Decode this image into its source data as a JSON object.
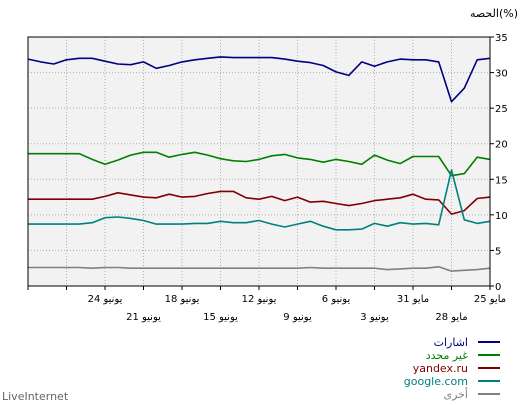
{
  "chart_data": {
    "type": "line",
    "ylabel": "الحصه(%)",
    "ylim": [
      0,
      35
    ],
    "yticks": [
      0,
      5,
      10,
      15,
      20,
      25,
      30,
      35
    ],
    "grid": true,
    "x_direction": "right-to-left (most recent on the left)",
    "x_ticks_top": [
      "25 مايو",
      "31 مايو",
      "6 يونيو",
      "12 يونيو",
      "18 يونيو",
      "24 يونيو"
    ],
    "x_ticks_bottom": [
      "28 مايو",
      "3 يونيو",
      "9 يونيو",
      "15 يونيو",
      "21 يونيو"
    ],
    "n_points": 37,
    "series": [
      {
        "name": "اشارات",
        "color": "#000080",
        "values": [
          32,
          31.8,
          27.8,
          25.9,
          31.5,
          31.8,
          31.8,
          31.9,
          31.5,
          30.9,
          31.5,
          29.6,
          30.1,
          31,
          31.4,
          31.6,
          31.9,
          32.1,
          32.1,
          32.1,
          32.1,
          32.2,
          32,
          31.8,
          31.5,
          31,
          30.6,
          31.5,
          31.1,
          31.2,
          31.6,
          32,
          32,
          31.8,
          31.2,
          31.5,
          31.9
        ]
      },
      {
        "name": "غير محدد",
        "color": "#008000",
        "values": [
          17.8,
          18.1,
          15.8,
          15.5,
          18.2,
          18.2,
          18.2,
          17.2,
          17.7,
          18.4,
          17.1,
          17.5,
          17.8,
          17.4,
          17.8,
          18,
          18.5,
          18.3,
          17.8,
          17.5,
          17.6,
          17.9,
          18.4,
          18.8,
          18.5,
          18.1,
          18.8,
          18.8,
          18.4,
          17.7,
          17.1,
          17.8,
          18.6,
          18.6,
          18.6,
          18.6,
          18.6
        ]
      },
      {
        "name": "yandex.ru",
        "color": "#800000",
        "values": [
          12.5,
          12.3,
          10.6,
          10.1,
          12.1,
          12.2,
          12.9,
          12.4,
          12.2,
          12.0,
          11.6,
          11.3,
          11.6,
          11.9,
          11.8,
          12.5,
          12.0,
          12.6,
          12.2,
          12.4,
          13.3,
          13.3,
          13.0,
          12.6,
          12.5,
          12.9,
          12.4,
          12.5,
          12.8,
          13.1,
          12.6,
          12.2,
          12.2,
          12.2,
          12.2,
          12.2,
          12.2
        ]
      },
      {
        "name": "google.com",
        "color": "#008080",
        "values": [
          9.1,
          8.8,
          9.3,
          16.3,
          8.6,
          8.8,
          8.7,
          8.9,
          8.4,
          8.8,
          8.0,
          7.9,
          7.9,
          8.4,
          9.1,
          8.7,
          8.3,
          8.7,
          9.2,
          8.9,
          8.9,
          9.1,
          8.8,
          8.8,
          8.7,
          8.7,
          8.7,
          9.2,
          9.5,
          9.7,
          9.6,
          8.9,
          8.7,
          8.7,
          8.7,
          8.7,
          8.7
        ]
      },
      {
        "name": "أخرى",
        "color": "#808080",
        "values": [
          2.5,
          2.3,
          2.2,
          2.1,
          2.7,
          2.5,
          2.5,
          2.4,
          2.3,
          2.5,
          2.5,
          2.5,
          2.5,
          2.5,
          2.6,
          2.5,
          2.5,
          2.5,
          2.5,
          2.5,
          2.5,
          2.5,
          2.5,
          2.5,
          2.5,
          2.5,
          2.5,
          2.5,
          2.5,
          2.6,
          2.6,
          2.5,
          2.6,
          2.6,
          2.6,
          2.6,
          2.6
        ]
      }
    ]
  },
  "footer": {
    "brand": "LiveInternet"
  }
}
